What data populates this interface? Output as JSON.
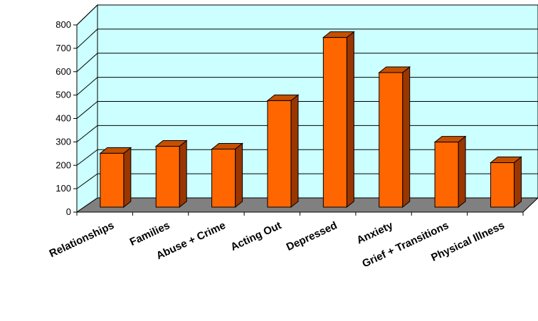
{
  "chart_data": {
    "type": "bar",
    "categories": [
      "Relationships",
      "Families",
      "Abuse + Crime",
      "Acting Out",
      "Depressed",
      "Anxiety",
      "Grief + Transitions",
      "Physical Illness"
    ],
    "values": [
      230,
      260,
      248,
      455,
      725,
      575,
      278,
      190
    ],
    "ylim": [
      0,
      800
    ],
    "yticks": [
      0,
      100,
      200,
      300,
      400,
      500,
      600,
      700,
      800
    ],
    "grid": true,
    "legend": "none",
    "colors": {
      "bar_front": "#ff6600",
      "bar_side": "#9a3600",
      "bar_top": "#c65000",
      "wall": "#ccffff",
      "floor": "#808080",
      "grid": "#000000"
    }
  }
}
